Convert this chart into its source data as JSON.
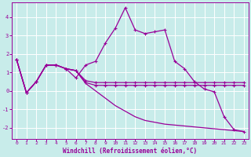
{
  "xlabel": "Windchill (Refroidissement éolien,°C)",
  "background_color": "#c8ecea",
  "grid_color": "#b0d8d8",
  "line_color": "#990099",
  "xlim": [
    -0.5,
    23.5
  ],
  "ylim": [
    -2.6,
    4.8
  ],
  "xticks": [
    0,
    1,
    2,
    3,
    4,
    5,
    6,
    7,
    8,
    9,
    10,
    11,
    12,
    13,
    14,
    15,
    16,
    17,
    18,
    19,
    20,
    21,
    22,
    23
  ],
  "yticks": [
    -2,
    -1,
    0,
    1,
    2,
    3,
    4
  ],
  "series": {
    "line1": [
      1.7,
      -0.1,
      0.5,
      1.4,
      1.4,
      1.2,
      0.7,
      1.4,
      1.6,
      2.6,
      3.4,
      4.5,
      3.3,
      3.1,
      3.2,
      3.3,
      1.6,
      1.2,
      0.5,
      0.1,
      -0.05,
      -1.4,
      -2.1,
      -2.2
    ],
    "line2": [
      1.7,
      -0.1,
      0.5,
      1.4,
      1.4,
      1.2,
      1.1,
      0.55,
      0.45,
      0.45,
      0.45,
      0.45,
      0.45,
      0.45,
      0.45,
      0.45,
      0.45,
      0.45,
      0.45,
      0.45,
      0.45,
      0.45,
      0.45,
      0.45
    ],
    "line3": [
      1.7,
      -0.1,
      0.5,
      1.4,
      1.4,
      1.2,
      1.1,
      0.45,
      0.3,
      0.3,
      0.3,
      0.3,
      0.3,
      0.3,
      0.3,
      0.3,
      0.3,
      0.3,
      0.3,
      0.3,
      0.3,
      0.3,
      0.3,
      0.3
    ],
    "line4": [
      1.7,
      -0.1,
      0.5,
      1.4,
      1.4,
      1.2,
      1.1,
      0.4,
      0.0,
      -0.4,
      -0.8,
      -1.1,
      -1.4,
      -1.6,
      -1.7,
      -1.8,
      -1.85,
      -1.9,
      -1.95,
      -2.0,
      -2.05,
      -2.1,
      -2.15,
      -2.2
    ]
  }
}
